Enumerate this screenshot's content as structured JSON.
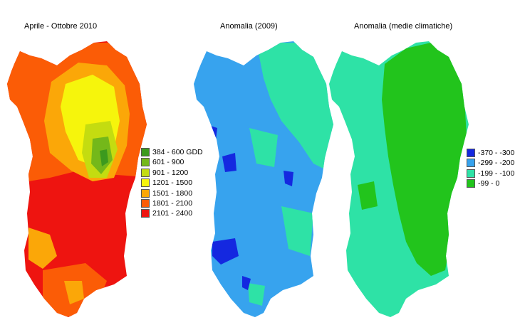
{
  "panels": [
    {
      "title": "Aprile - Ottobre 2010"
    },
    {
      "title": "Anomalia (2009)"
    },
    {
      "title": "Anomalia (medie climatiche)"
    }
  ],
  "legend_gdd": {
    "items": [
      {
        "label": "384 - 600 GDD",
        "color": "#3c9a1e"
      },
      {
        "label": "601 - 900",
        "color": "#74b81a"
      },
      {
        "label": "901 - 1200",
        "color": "#c4dc10"
      },
      {
        "label": "1201 - 1500",
        "color": "#f6f50c"
      },
      {
        "label": "1501 - 1800",
        "color": "#fba708"
      },
      {
        "label": "1801 - 2100",
        "color": "#fb5c06"
      },
      {
        "label": "2101 - 2400",
        "color": "#ee1410"
      }
    ]
  },
  "legend_anomaly": {
    "items": [
      {
        "label": "-370 - -300",
        "color": "#1428e0"
      },
      {
        "label": "-299 - -200",
        "color": "#37a3ee"
      },
      {
        "label": "-199 - -100",
        "color": "#2ee2a6"
      },
      {
        "label": "-99 - 0",
        "color": "#22c41c"
      }
    ]
  }
}
